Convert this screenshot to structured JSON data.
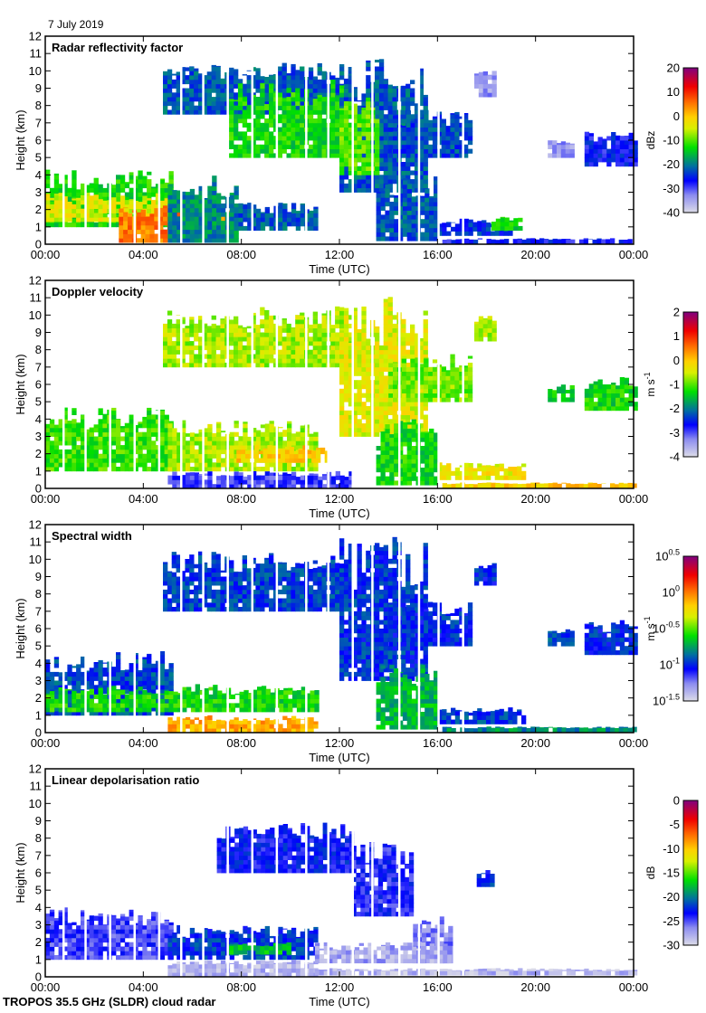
{
  "header": {
    "date": "7 July 2019"
  },
  "footer": {
    "instrument": "TROPOS 35.5 GHz (SLDR) cloud radar"
  },
  "chart_data": [
    {
      "type": "heatmap",
      "title": "Radar reflectivity factor",
      "xlabel": "Time (UTC)",
      "ylabel": "Height (km)",
      "xlim": [
        0,
        24
      ],
      "ylim": [
        0,
        12
      ],
      "xticks": [
        "00:00",
        "04:00",
        "08:00",
        "12:00",
        "16:00",
        "20:00",
        "00:00"
      ],
      "yticks": [
        "0",
        "1",
        "2",
        "3",
        "4",
        "5",
        "6",
        "7",
        "8",
        "9",
        "10",
        "11",
        "12"
      ],
      "colorbar": {
        "label": "dBz",
        "range": [
          -40,
          20
        ],
        "ticks": [
          "20",
          "10",
          "0",
          "-10",
          "-20",
          "-30",
          "-40"
        ]
      },
      "regions": [
        {
          "t0": 0,
          "t1": 5.2,
          "z0": 1.0,
          "z1": 4.3,
          "level": 0.45
        },
        {
          "t0": 0,
          "t1": 5.2,
          "z0": 1.3,
          "z1": 3.0,
          "level": 0.6
        },
        {
          "t0": 3.0,
          "t1": 7.5,
          "z0": 0.1,
          "z1": 2.4,
          "level": 0.75
        },
        {
          "t0": 5.0,
          "t1": 7.8,
          "z0": 0.1,
          "z1": 4.0,
          "level": 0.35
        },
        {
          "t0": 7.7,
          "t1": 11.0,
          "z0": 0.8,
          "z1": 2.4,
          "level": 0.3
        },
        {
          "t0": 4.8,
          "t1": 12.5,
          "z0": 7.5,
          "z1": 10.5,
          "level": 0.3
        },
        {
          "t0": 7.5,
          "t1": 12.0,
          "z0": 5.0,
          "z1": 9.5,
          "level": 0.45
        },
        {
          "t0": 12.0,
          "t1": 15.5,
          "z0": 3.0,
          "z1": 10.8,
          "level": 0.3
        },
        {
          "t0": 12.0,
          "t1": 13.5,
          "z0": 4.0,
          "z1": 8.5,
          "level": 0.5
        },
        {
          "t0": 14.0,
          "t1": 17.3,
          "z0": 5.0,
          "z1": 7.8,
          "level": 0.28
        },
        {
          "t0": 13.5,
          "t1": 16.0,
          "z0": 0.2,
          "z1": 4.0,
          "level": 0.3
        },
        {
          "t0": 16.0,
          "t1": 19.0,
          "z0": 0.5,
          "z1": 1.5,
          "level": 0.25
        },
        {
          "t0": 18.2,
          "t1": 19.4,
          "z0": 0.8,
          "z1": 1.6,
          "level": 0.45
        },
        {
          "t0": 16.2,
          "t1": 24,
          "z0": 0.05,
          "z1": 0.35,
          "level": 0.22
        },
        {
          "t0": 22.0,
          "t1": 24,
          "z0": 4.5,
          "z1": 6.5,
          "level": 0.22
        },
        {
          "t0": 20.5,
          "t1": 21.5,
          "z0": 5.0,
          "z1": 6.0,
          "level": 0.1
        },
        {
          "t0": 17.5,
          "t1": 18.3,
          "z0": 8.5,
          "z1": 10.0,
          "level": 0.1
        }
      ]
    },
    {
      "type": "heatmap",
      "title": "Doppler velocity",
      "xlabel": "Time (UTC)",
      "ylabel": "Height (km)",
      "xlim": [
        0,
        24
      ],
      "ylim": [
        0,
        12
      ],
      "xticks": [
        "00:00",
        "04:00",
        "08:00",
        "12:00",
        "16:00",
        "20:00",
        "00:00"
      ],
      "yticks": [
        "0",
        "1",
        "2",
        "3",
        "4",
        "5",
        "6",
        "7",
        "8",
        "9",
        "10",
        "11",
        "12"
      ],
      "colorbar": {
        "label": "m s-1",
        "range": [
          -4,
          2
        ],
        "ticks": [
          "2",
          "1",
          "0",
          "-1",
          "-2",
          "-3",
          "-4"
        ]
      },
      "regions": [
        {
          "t0": 0,
          "t1": 5.2,
          "z0": 1.0,
          "z1": 4.7,
          "level": 0.48
        },
        {
          "t0": 5.0,
          "t1": 11.0,
          "z0": 1.0,
          "z1": 4.0,
          "level": 0.55
        },
        {
          "t0": 7.8,
          "t1": 11.5,
          "z0": 1.5,
          "z1": 2.5,
          "level": 0.66
        },
        {
          "t0": 4.8,
          "t1": 12.5,
          "z0": 7.0,
          "z1": 10.5,
          "level": 0.55
        },
        {
          "t0": 12.0,
          "t1": 15.5,
          "z0": 3.0,
          "z1": 11.3,
          "level": 0.6
        },
        {
          "t0": 14.0,
          "t1": 17.3,
          "z0": 5.0,
          "z1": 7.8,
          "level": 0.52
        },
        {
          "t0": 13.5,
          "t1": 16.0,
          "z0": 0.2,
          "z1": 4.0,
          "level": 0.45
        },
        {
          "t0": 5.0,
          "t1": 12.5,
          "z0": 0.0,
          "z1": 1.0,
          "level": 0.18
        },
        {
          "t0": 16.0,
          "t1": 19.5,
          "z0": 0.5,
          "z1": 1.5,
          "level": 0.62
        },
        {
          "t0": 16.2,
          "t1": 24,
          "z0": 0.05,
          "z1": 0.35,
          "level": 0.66
        },
        {
          "t0": 22.0,
          "t1": 24,
          "z0": 4.5,
          "z1": 6.5,
          "level": 0.45
        },
        {
          "t0": 20.5,
          "t1": 21.5,
          "z0": 5.0,
          "z1": 6.0,
          "level": 0.42
        },
        {
          "t0": 17.5,
          "t1": 18.3,
          "z0": 8.5,
          "z1": 10.0,
          "level": 0.55
        }
      ]
    },
    {
      "type": "heatmap",
      "title": "Spectral width",
      "xlabel": "Time (UTC)",
      "ylabel": "Height (km)",
      "xlim": [
        0,
        24
      ],
      "ylim": [
        0,
        12
      ],
      "xticks": [
        "00:00",
        "04:00",
        "08:00",
        "12:00",
        "16:00",
        "20:00",
        "00:00"
      ],
      "yticks": [
        "0",
        "1",
        "2",
        "3",
        "4",
        "5",
        "6",
        "7",
        "8",
        "9",
        "10",
        "11",
        "12"
      ],
      "colorbar": {
        "label": "m s-1",
        "range": [
          -1.5,
          0.5
        ],
        "scale": "log10",
        "ticks": [
          "10^0.5",
          "10^0",
          "10^-0.5",
          "10^-1",
          "10^-1.5"
        ]
      },
      "regions": [
        {
          "t0": 0,
          "t1": 5.2,
          "z0": 1.0,
          "z1": 4.7,
          "level": 0.28
        },
        {
          "t0": 0,
          "t1": 11.0,
          "z0": 1.2,
          "z1": 2.8,
          "level": 0.45
        },
        {
          "t0": 5.0,
          "t1": 11.0,
          "z0": 0.0,
          "z1": 1.0,
          "level": 0.7
        },
        {
          "t0": 4.8,
          "t1": 12.5,
          "z0": 7.0,
          "z1": 10.5,
          "level": 0.27
        },
        {
          "t0": 12.0,
          "t1": 15.5,
          "z0": 3.0,
          "z1": 11.3,
          "level": 0.26
        },
        {
          "t0": 14.0,
          "t1": 17.3,
          "z0": 5.0,
          "z1": 7.8,
          "level": 0.25
        },
        {
          "t0": 13.5,
          "t1": 16.0,
          "z0": 0.2,
          "z1": 4.0,
          "level": 0.4
        },
        {
          "t0": 16.0,
          "t1": 19.5,
          "z0": 0.5,
          "z1": 1.5,
          "level": 0.28
        },
        {
          "t0": 16.2,
          "t1": 24,
          "z0": 0.05,
          "z1": 0.35,
          "level": 0.35
        },
        {
          "t0": 22.0,
          "t1": 24,
          "z0": 4.5,
          "z1": 6.5,
          "level": 0.25
        },
        {
          "t0": 20.5,
          "t1": 21.5,
          "z0": 5.0,
          "z1": 6.0,
          "level": 0.28
        },
        {
          "t0": 17.5,
          "t1": 18.3,
          "z0": 8.5,
          "z1": 10.0,
          "level": 0.25
        }
      ]
    },
    {
      "type": "heatmap",
      "title": "Linear depolarisation ratio",
      "xlabel": "Time (UTC)",
      "ylabel": "Height (km)",
      "xlim": [
        0,
        24
      ],
      "ylim": [
        0,
        12
      ],
      "xticks": [
        "00:00",
        "04:00",
        "08:00",
        "12:00",
        "16:00",
        "20:00",
        "00:00"
      ],
      "yticks": [
        "0",
        "1",
        "2",
        "3",
        "4",
        "5",
        "6",
        "7",
        "8",
        "9",
        "10",
        "11",
        "12"
      ],
      "colorbar": {
        "label": "dB",
        "range": [
          -30,
          0
        ],
        "ticks": [
          "0",
          "-5",
          "-10",
          "-15",
          "-20",
          "-25",
          "-30"
        ]
      },
      "regions": [
        {
          "t0": 0,
          "t1": 5.2,
          "z0": 1.0,
          "z1": 4.0,
          "level": 0.18
        },
        {
          "t0": 5.0,
          "t1": 11.0,
          "z0": 1.0,
          "z1": 3.0,
          "level": 0.26
        },
        {
          "t0": 7.5,
          "t1": 10.0,
          "z0": 1.3,
          "z1": 2.0,
          "level": 0.42
        },
        {
          "t0": 5.0,
          "t1": 11.0,
          "z0": 0.0,
          "z1": 1.0,
          "level": 0.06
        },
        {
          "t0": 7.0,
          "t1": 12.5,
          "z0": 6.0,
          "z1": 9.0,
          "level": 0.22
        },
        {
          "t0": 12.5,
          "t1": 15.0,
          "z0": 3.5,
          "z1": 8.0,
          "level": 0.2
        },
        {
          "t0": 15.0,
          "t1": 16.5,
          "z0": 0.8,
          "z1": 3.5,
          "level": 0.12
        },
        {
          "t0": 11.0,
          "t1": 24,
          "z0": 0.1,
          "z1": 0.5,
          "level": 0.06
        },
        {
          "t0": 11.0,
          "t1": 16.5,
          "z0": 0.8,
          "z1": 2.0,
          "level": 0.08
        },
        {
          "t0": 17.6,
          "t1": 18.2,
          "z0": 5.2,
          "z1": 6.3,
          "level": 0.25
        }
      ]
    }
  ]
}
